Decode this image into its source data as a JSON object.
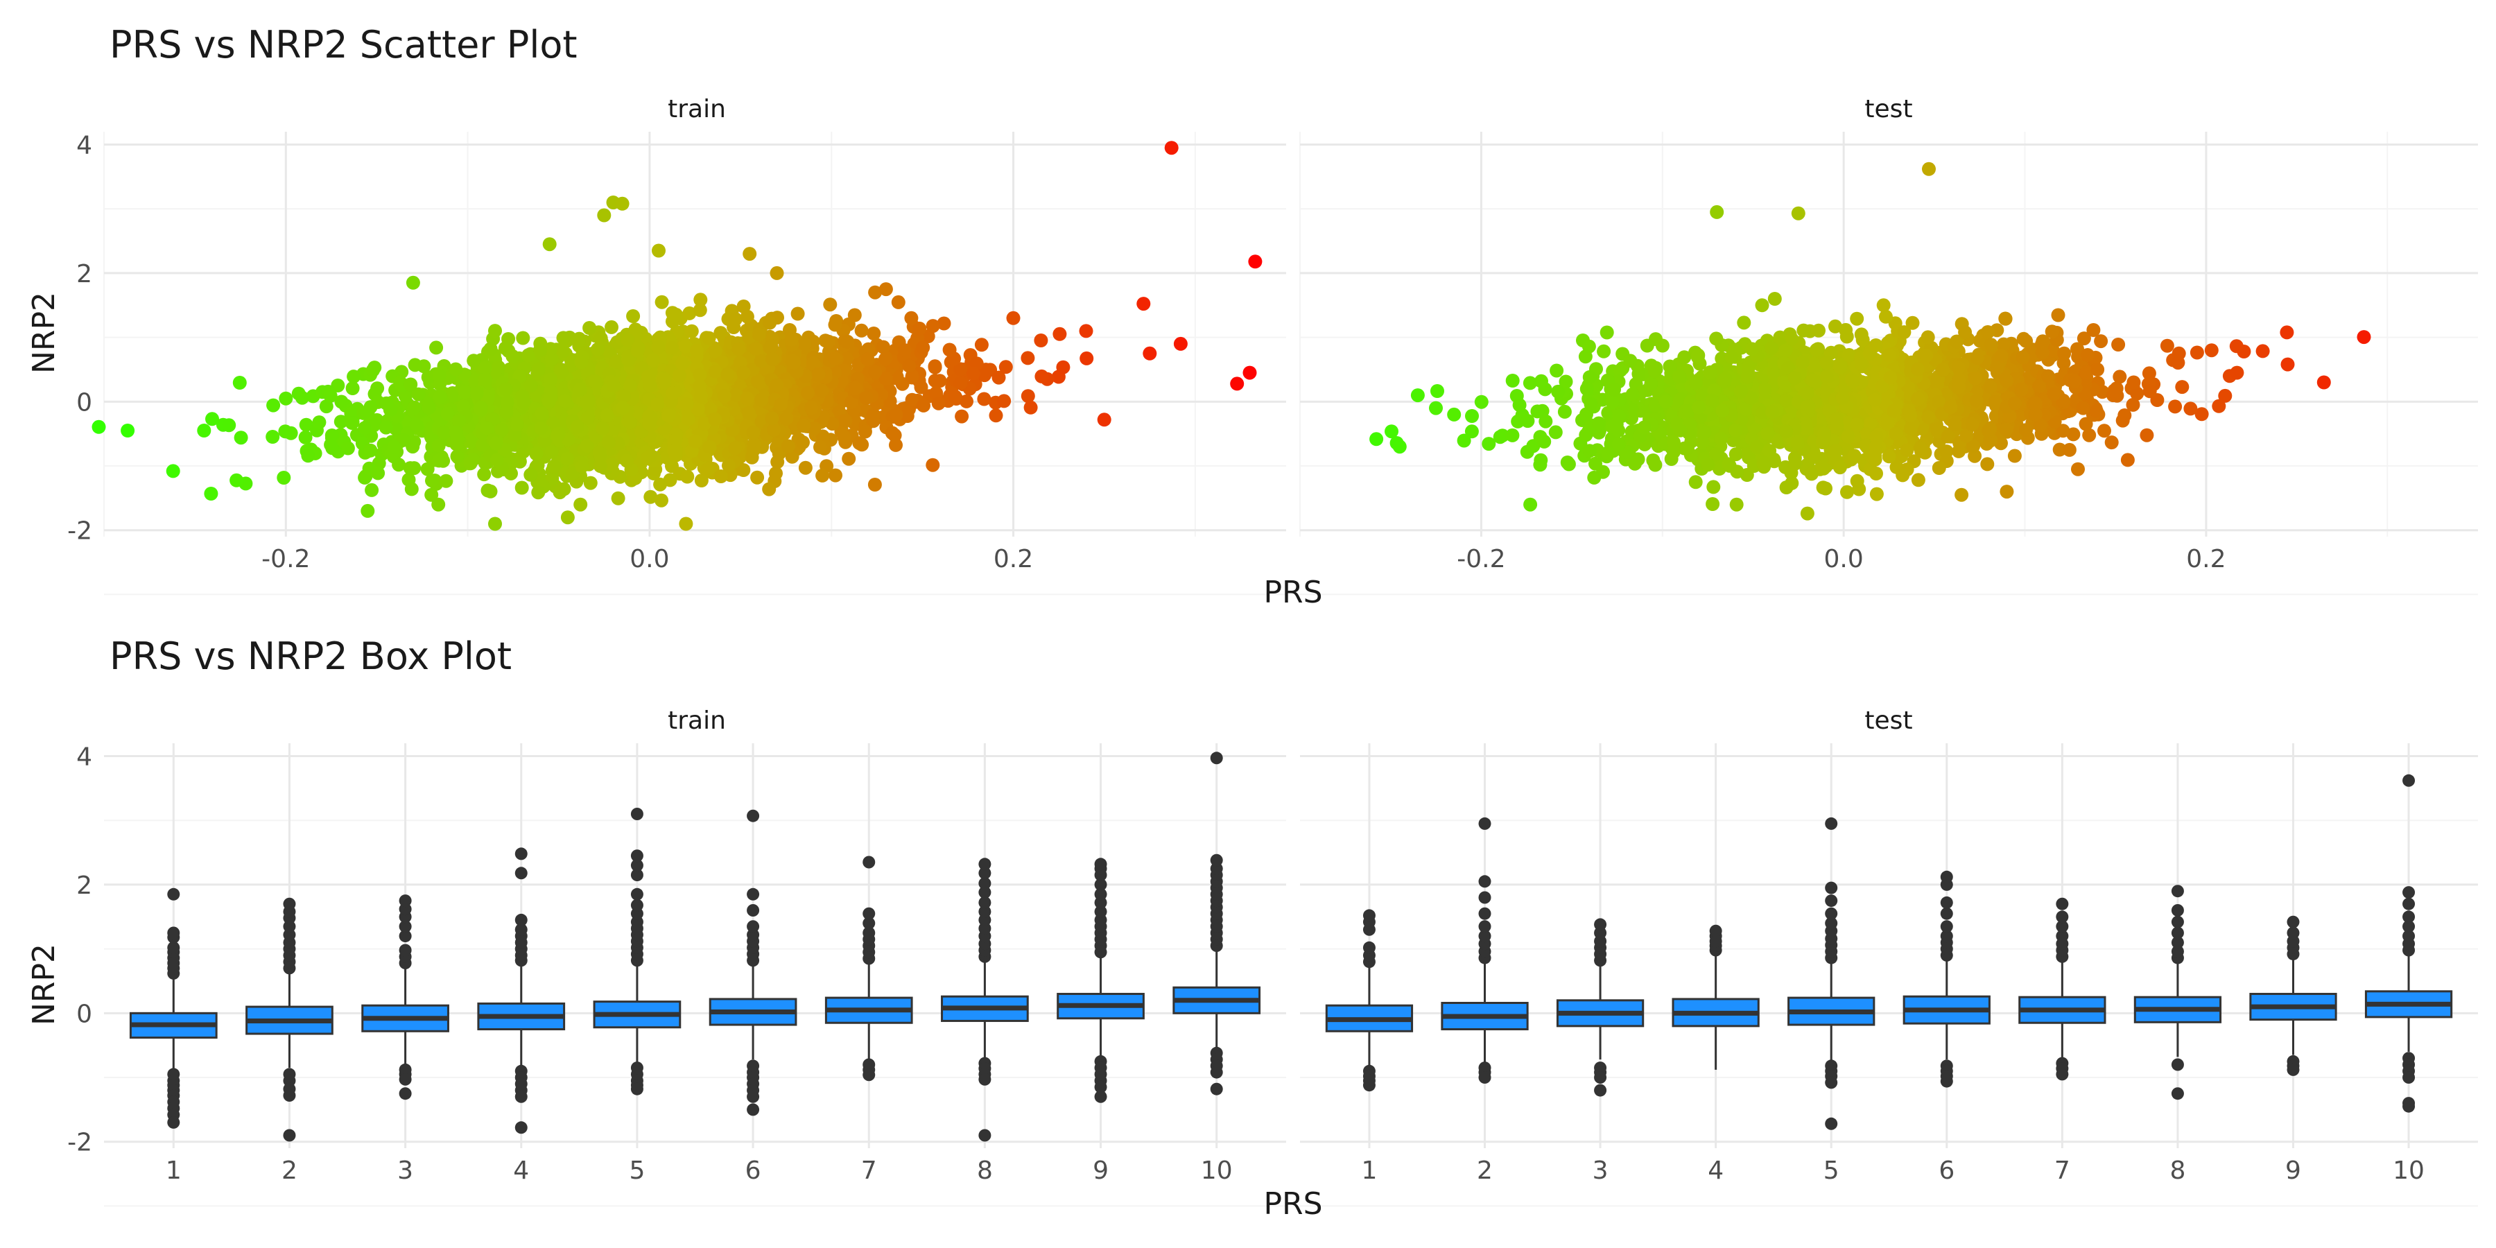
{
  "figure": {
    "scatter_title": "PRS vs NRP2 Scatter Plot",
    "box_title": "PRS vs NRP2 Box Plot",
    "x_label": "PRS",
    "y_label": "NRP2"
  },
  "colors": {
    "gradient_low": "#33ff00",
    "gradient_mid": "#bdb700",
    "gradient_high": "#ff0000",
    "box_fill": "#1e90ff",
    "box_line": "#333333",
    "grid": "#ebebeb"
  },
  "chart_data": [
    {
      "type": "scatter",
      "title": "PRS vs NRP2 Scatter Plot",
      "xlabel": "PRS",
      "ylabel": "NRP2",
      "xlim": [
        -0.3,
        0.35
      ],
      "ylim": [
        -2.1,
        4.2
      ],
      "x_ticks": [
        -0.2,
        0.0,
        0.2
      ],
      "x_tick_labels": [
        "-0.2",
        "0.0",
        "0.2"
      ],
      "y_ticks": [
        -2,
        0,
        2,
        4
      ],
      "y_tick_labels": [
        "-2",
        "0",
        "2",
        "4"
      ],
      "grid": true,
      "color_by": "PRS",
      "panels": [
        {
          "name": "train",
          "cloud": {
            "n": 3000,
            "x_mean": 0.0,
            "x_sd": 0.075,
            "y_mean": 0.0,
            "y_sd": 0.45,
            "slope": 2.0
          },
          "points": [
            [
              -0.287,
              -0.45
            ],
            [
              -0.262,
              -1.08
            ],
            [
              -0.245,
              -0.45
            ],
            [
              -0.2,
              0.05
            ],
            [
              -0.13,
              1.85
            ],
            [
              -0.155,
              -1.7
            ],
            [
              -0.12,
              -1.45
            ],
            [
              -0.085,
              -1.9
            ],
            [
              -0.045,
              -1.8
            ],
            [
              -0.02,
              3.1
            ],
            [
              -0.015,
              3.08
            ],
            [
              -0.025,
              2.9
            ],
            [
              -0.055,
              2.45
            ],
            [
              0.005,
              2.35
            ],
            [
              0.02,
              -1.9
            ],
            [
              0.055,
              2.3
            ],
            [
              0.07,
              2.0
            ],
            [
              0.13,
              1.75
            ],
            [
              0.095,
              -1.15
            ],
            [
              0.2,
              1.3
            ],
            [
              0.24,
              1.1
            ],
            [
              0.275,
              0.75
            ],
            [
              0.292,
              0.9
            ],
            [
              0.25,
              -0.28
            ],
            [
              0.287,
              3.95
            ],
            [
              0.333,
              2.18
            ],
            [
              0.33,
              0.45
            ],
            [
              0.323,
              0.28
            ]
          ]
        },
        {
          "name": "test",
          "cloud": {
            "n": 1900,
            "x_mean": 0.0,
            "x_sd": 0.072,
            "y_mean": 0.0,
            "y_sd": 0.42,
            "slope": 1.6
          },
          "points": [
            [
              -0.245,
              -0.7
            ],
            [
              -0.235,
              0.1
            ],
            [
              -0.225,
              -0.1
            ],
            [
              -0.215,
              -0.2
            ],
            [
              -0.11,
              -0.4
            ],
            [
              -0.098,
              0.0
            ],
            [
              -0.07,
              2.95
            ],
            [
              -0.025,
              2.93
            ],
            [
              0.047,
              3.62
            ],
            [
              -0.045,
              1.5
            ],
            [
              -0.038,
              1.6
            ],
            [
              0.022,
              1.5
            ],
            [
              -0.01,
              -1.35
            ],
            [
              -0.02,
              -1.74
            ],
            [
              0.065,
              -1.45
            ],
            [
              0.09,
              -1.4
            ],
            [
              0.14,
              0.5
            ],
            [
              0.16,
              0.3
            ],
            [
              0.185,
              0.75
            ],
            [
              0.203,
              0.8
            ],
            [
              0.213,
              0.4
            ],
            [
              0.217,
              0.45
            ],
            [
              0.245,
              0.58
            ],
            [
              0.265,
              0.3
            ]
          ]
        }
      ]
    },
    {
      "type": "box",
      "title": "PRS vs NRP2 Box Plot",
      "xlabel": "PRS",
      "ylabel": "NRP2",
      "categories": [
        "1",
        "2",
        "3",
        "4",
        "5",
        "6",
        "7",
        "8",
        "9",
        "10"
      ],
      "ylim": [
        -2.1,
        4.2
      ],
      "y_ticks": [
        -2,
        0,
        2,
        4
      ],
      "y_tick_labels": [
        "-2",
        "0",
        "2",
        "4"
      ],
      "grid": true,
      "panels": [
        {
          "name": "train",
          "boxes": [
            {
              "lower": -0.9,
              "q1": -0.38,
              "median": -0.18,
              "q3": 0.0,
              "upper": 0.55,
              "outliers": [
                0.62,
                0.7,
                0.78,
                0.86,
                0.95,
                1.02,
                1.18,
                1.25,
                1.85,
                -0.95,
                -1.05,
                -1.12,
                -1.2,
                -1.28,
                -1.38,
                -1.48,
                -1.58,
                -1.7
              ]
            },
            {
              "lower": -0.85,
              "q1": -0.32,
              "median": -0.12,
              "q3": 0.1,
              "upper": 0.62,
              "outliers": [
                0.7,
                0.8,
                0.9,
                1.0,
                1.1,
                1.22,
                1.35,
                1.48,
                1.58,
                1.7,
                -0.95,
                -1.05,
                -1.18,
                -1.28,
                -1.9
              ]
            },
            {
              "lower": -0.8,
              "q1": -0.28,
              "median": -0.08,
              "q3": 0.12,
              "upper": 0.7,
              "outliers": [
                0.78,
                0.88,
                0.98,
                1.2,
                1.35,
                1.5,
                1.62,
                1.75,
                -0.88,
                -0.95,
                -1.03,
                -1.25
              ]
            },
            {
              "lower": -0.82,
              "q1": -0.25,
              "median": -0.05,
              "q3": 0.15,
              "upper": 0.75,
              "outliers": [
                0.82,
                0.9,
                1.0,
                1.1,
                1.2,
                1.3,
                1.45,
                2.18,
                2.48,
                -0.9,
                -1.0,
                -1.1,
                -1.2,
                -1.3,
                -1.78
              ]
            },
            {
              "lower": -0.78,
              "q1": -0.22,
              "median": -0.02,
              "q3": 0.18,
              "upper": 0.75,
              "outliers": [
                0.82,
                0.92,
                1.02,
                1.12,
                1.22,
                1.32,
                1.42,
                1.55,
                1.68,
                1.85,
                2.15,
                2.3,
                2.45,
                3.1,
                -0.85,
                -0.95,
                -1.05,
                -1.12,
                -1.18
              ]
            },
            {
              "lower": -0.72,
              "q1": -0.18,
              "median": 0.02,
              "q3": 0.22,
              "upper": 0.75,
              "outliers": [
                0.82,
                0.92,
                1.02,
                1.12,
                1.22,
                1.35,
                1.6,
                1.85,
                3.07,
                -0.82,
                -0.92,
                -1.0,
                -1.1,
                -1.2,
                -1.3,
                -1.5
              ]
            },
            {
              "lower": -0.72,
              "q1": -0.15,
              "median": 0.05,
              "q3": 0.24,
              "upper": 0.78,
              "outliers": [
                0.85,
                0.95,
                1.05,
                1.15,
                1.25,
                1.4,
                1.55,
                2.35,
                -0.8,
                -0.88,
                -0.96
              ]
            },
            {
              "lower": -0.7,
              "q1": -0.12,
              "median": 0.08,
              "q3": 0.26,
              "upper": 0.8,
              "outliers": [
                0.88,
                0.98,
                1.08,
                1.2,
                1.32,
                1.45,
                1.58,
                1.72,
                1.88,
                2.02,
                2.18,
                2.32,
                -0.78,
                -0.86,
                -0.95,
                -1.03,
                -1.9
              ]
            },
            {
              "lower": -0.66,
              "q1": -0.08,
              "median": 0.12,
              "q3": 0.3,
              "upper": 0.88,
              "outliers": [
                0.95,
                1.05,
                1.15,
                1.25,
                1.35,
                1.45,
                1.58,
                1.72,
                1.85,
                2.0,
                2.15,
                2.25,
                2.32,
                -0.75,
                -0.85,
                -0.95,
                -1.05,
                -1.15,
                -1.3
              ]
            },
            {
              "lower": -0.55,
              "q1": 0.0,
              "median": 0.2,
              "q3": 0.4,
              "upper": 0.98,
              "outliers": [
                1.05,
                1.15,
                1.25,
                1.35,
                1.45,
                1.55,
                1.65,
                1.75,
                1.85,
                1.95,
                2.05,
                2.15,
                2.25,
                2.38,
                3.97,
                -0.62,
                -0.72,
                -0.82,
                -0.92,
                -1.18
              ]
            }
          ]
        },
        {
          "name": "test",
          "boxes": [
            {
              "lower": -0.82,
              "q1": -0.28,
              "median": -0.1,
              "q3": 0.12,
              "upper": 0.72,
              "outliers": [
                0.8,
                0.9,
                1.02,
                1.3,
                1.42,
                1.52,
                -0.9,
                -0.98,
                -1.05,
                -1.12
              ]
            },
            {
              "lower": -0.78,
              "q1": -0.25,
              "median": -0.05,
              "q3": 0.16,
              "upper": 0.78,
              "outliers": [
                0.86,
                0.96,
                1.08,
                1.2,
                1.35,
                1.55,
                1.8,
                2.05,
                2.95,
                -0.85,
                -0.92,
                -1.0
              ]
            },
            {
              "lower": -0.72,
              "q1": -0.2,
              "median": 0.0,
              "q3": 0.2,
              "upper": 0.75,
              "outliers": [
                0.82,
                0.92,
                1.02,
                1.12,
                1.25,
                1.38,
                -0.85,
                -0.92,
                -1.0,
                -1.2
              ]
            },
            {
              "lower": -0.88,
              "q1": -0.2,
              "median": 0.0,
              "q3": 0.22,
              "upper": 0.9,
              "outliers": [
                0.98,
                1.05,
                1.12,
                1.2,
                1.28
              ]
            },
            {
              "lower": -0.75,
              "q1": -0.18,
              "median": 0.02,
              "q3": 0.24,
              "upper": 0.78,
              "outliers": [
                0.86,
                0.96,
                1.06,
                1.16,
                1.28,
                1.4,
                1.55,
                1.75,
                1.95,
                2.95,
                -0.82,
                -0.9,
                -0.98,
                -1.08,
                -1.72
              ]
            },
            {
              "lower": -0.72,
              "q1": -0.16,
              "median": 0.05,
              "q3": 0.26,
              "upper": 0.82,
              "outliers": [
                0.9,
                1.0,
                1.1,
                1.2,
                1.35,
                1.55,
                1.72,
                2.0,
                2.12,
                -0.82,
                -0.9,
                -0.98,
                -1.06
              ]
            },
            {
              "lower": -0.7,
              "q1": -0.15,
              "median": 0.05,
              "q3": 0.25,
              "upper": 0.8,
              "outliers": [
                0.88,
                0.98,
                1.08,
                1.2,
                1.35,
                1.5,
                1.7,
                -0.78,
                -0.86,
                -0.95
              ]
            },
            {
              "lower": -0.68,
              "q1": -0.14,
              "median": 0.06,
              "q3": 0.25,
              "upper": 0.78,
              "outliers": [
                0.86,
                0.96,
                1.1,
                1.25,
                1.42,
                1.6,
                1.9,
                -0.8,
                -1.25
              ]
            },
            {
              "lower": -0.65,
              "q1": -0.1,
              "median": 0.1,
              "q3": 0.3,
              "upper": 0.85,
              "outliers": [
                0.92,
                1.02,
                1.12,
                1.25,
                1.42,
                -0.75,
                -0.82,
                -0.88
              ]
            },
            {
              "lower": -0.6,
              "q1": -0.06,
              "median": 0.14,
              "q3": 0.34,
              "upper": 0.9,
              "outliers": [
                0.98,
                1.08,
                1.2,
                1.35,
                1.5,
                1.7,
                1.88,
                3.62,
                -0.7,
                -0.8,
                -0.9,
                -1.0,
                -1.4,
                -1.45
              ]
            }
          ]
        }
      ]
    }
  ]
}
